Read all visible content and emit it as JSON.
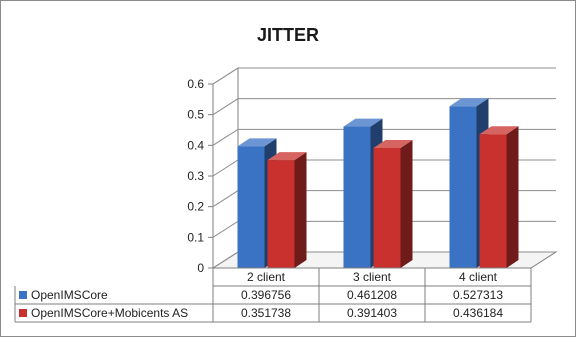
{
  "chart_data": {
    "type": "bar",
    "title": "JITTER",
    "categories": [
      "2 client",
      "3 client",
      "4 client"
    ],
    "series": [
      {
        "name": "OpenIMSCore",
        "values": [
          0.396756,
          0.461208,
          0.527313
        ],
        "value_labels": [
          "0.396756",
          "0.461208",
          "0.527313"
        ],
        "color": "#3a72c4"
      },
      {
        "name": "OpenIMSCore+Mobicents AS",
        "values": [
          0.351738,
          0.391403,
          0.436184
        ],
        "value_labels": [
          "0.351738",
          "0.391403",
          "0.436184"
        ],
        "color": "#c8312e"
      }
    ],
    "ylim": [
      0,
      0.6
    ],
    "yticks": [
      "0",
      "0.1",
      "0.2",
      "0.3",
      "0.4",
      "0.5",
      "0.6"
    ],
    "grid": true,
    "style": "3d-clustered-column",
    "legend": "data-table"
  }
}
